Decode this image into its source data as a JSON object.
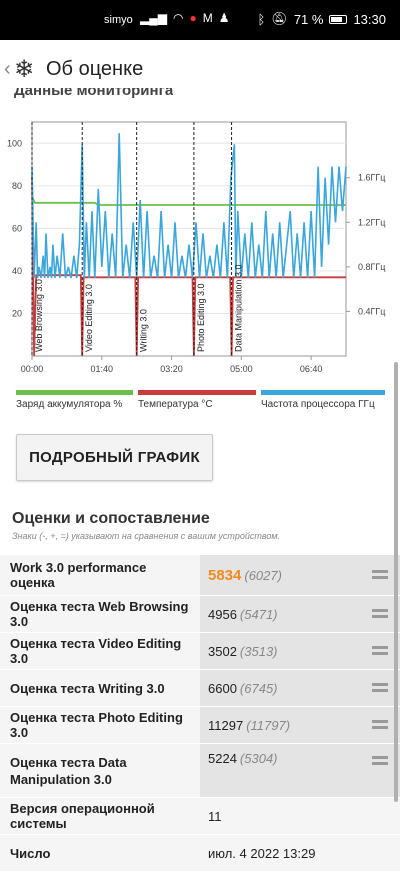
{
  "status_bar": {
    "carrier": "simyo",
    "battery": "71 %",
    "time": "13:30"
  },
  "app_bar": {
    "title": "Об оценке",
    "back_icon": "chevron-left-icon",
    "logo_icon": "snowflake-icon"
  },
  "monitoring": {
    "title": "Данные мониторинга"
  },
  "chart_data": {
    "type": "line",
    "x_ticks": [
      "00:00",
      "01:40",
      "03:20",
      "05:00",
      "06:40"
    ],
    "y_left_ticks": [
      20,
      40,
      60,
      80,
      100
    ],
    "y_left_range": [
      0,
      110
    ],
    "y_right_ticks": [
      "0.4ГГц",
      "0.8ГГц",
      "1.2ГГц",
      "1.6ГГц"
    ],
    "y_right_range": [
      0,
      2.1
    ],
    "x_range_minutes": [
      0,
      450
    ],
    "markers": [
      {
        "label": "Web Browsing 3.0",
        "x": 0
      },
      {
        "label": "Video Editing 3.0",
        "x": 72
      },
      {
        "label": "Writing 3.0",
        "x": 150
      },
      {
        "label": "Photo Editing 3.0",
        "x": 232
      },
      {
        "label": "Data Manipulation 3.0",
        "x": 286
      }
    ],
    "series": [
      {
        "name": "Заряд аккумулятора %",
        "color": "#6cc04a",
        "axis": "left",
        "x": [
          0,
          4,
          90,
          95,
          450
        ],
        "y": [
          75,
          72,
          72,
          71,
          71
        ]
      },
      {
        "name": "Температура °C",
        "color": "#c83c3c",
        "axis": "left",
        "x": [
          0,
          3,
          6,
          70,
          72,
          74,
          148,
          150,
          152,
          230,
          232,
          234,
          284,
          286,
          288,
          450
        ],
        "y": [
          85,
          0,
          38,
          38,
          0,
          37,
          37,
          0,
          37,
          37,
          0,
          37,
          37,
          0,
          37,
          37
        ]
      },
      {
        "name": "Частота процессора ГГц",
        "color": "#3aa6dc",
        "axis": "right",
        "x": [
          0,
          3,
          6,
          8,
          10,
          13,
          16,
          18,
          20,
          23,
          26,
          28,
          30,
          33,
          36,
          40,
          44,
          48,
          52,
          56,
          60,
          64,
          68,
          72,
          75,
          78,
          82,
          86,
          90,
          95,
          100,
          105,
          110,
          115,
          120,
          125,
          130,
          135,
          140,
          145,
          150,
          155,
          160,
          165,
          170,
          175,
          180,
          185,
          190,
          195,
          200,
          205,
          210,
          215,
          220,
          225,
          230,
          235,
          240,
          245,
          250,
          255,
          260,
          265,
          270,
          275,
          280,
          285,
          290,
          292,
          295,
          300,
          305,
          310,
          315,
          320,
          325,
          330,
          335,
          340,
          345,
          350,
          355,
          360,
          365,
          370,
          375,
          380,
          385,
          390,
          395,
          400,
          405,
          410,
          415,
          420,
          425,
          430,
          435,
          440,
          445,
          450
        ],
        "y": [
          1.7,
          0.7,
          1.2,
          0.7,
          0.8,
          0.7,
          0.9,
          0.7,
          1.1,
          0.7,
          0.8,
          0.7,
          1.0,
          0.7,
          0.9,
          0.7,
          1.1,
          0.7,
          0.8,
          0.7,
          0.9,
          0.7,
          1.0,
          1.9,
          0.7,
          1.2,
          0.7,
          1.3,
          0.7,
          1.5,
          0.8,
          1.3,
          0.7,
          1.1,
          0.7,
          2.0,
          0.7,
          1.0,
          0.7,
          1.2,
          0.7,
          1.4,
          0.7,
          1.3,
          0.7,
          0.9,
          0.7,
          1.3,
          0.7,
          1.0,
          0.7,
          1.2,
          0.7,
          0.9,
          0.7,
          1.0,
          0.7,
          1.2,
          0.7,
          1.1,
          0.7,
          0.9,
          0.7,
          1.0,
          0.7,
          1.2,
          0.7,
          1.6,
          1.9,
          0.7,
          1.3,
          0.7,
          1.1,
          0.7,
          1.2,
          0.7,
          1.0,
          0.7,
          1.3,
          0.7,
          1.1,
          0.7,
          1.2,
          0.7,
          1.0,
          1.3,
          0.7,
          1.1,
          0.7,
          1.2,
          0.7,
          1.3,
          0.7,
          1.7,
          0.8,
          1.6,
          1.0,
          1.7,
          1.2,
          1.7,
          1.3,
          1.7
        ]
      }
    ]
  },
  "legend": [
    {
      "label": "Заряд аккумулятора %",
      "color": "#6cc04a"
    },
    {
      "label": "Температура °C",
      "color": "#c83c3c"
    },
    {
      "label": "Частота процессора ГГц",
      "color": "#3aa6dc"
    }
  ],
  "detail_button": {
    "label": "ПОДРОБНЫЙ ГРАФИК"
  },
  "scores": {
    "heading": "Оценки и сопоставление",
    "hint": "Знаки (-, +, =) указывают на сравнения с вашим устройством.",
    "rows": [
      {
        "label": "Work 3.0 performance оценка",
        "value": "5834",
        "ref": "(6027)"
      },
      {
        "label": "Оценка теста Web Browsing 3.0",
        "value": "4956",
        "ref": "(5471)"
      },
      {
        "label": "Оценка теста Video Editing 3.0",
        "value": "3502",
        "ref": "(3513)"
      },
      {
        "label": "Оценка теста Writing 3.0",
        "value": "6600",
        "ref": "(6745)"
      },
      {
        "label": "Оценка теста Photo Editing 3.0",
        "value": "11297",
        "ref": "(11797)"
      },
      {
        "label": "Оценка теста Data Manipulation 3.0",
        "value": "5224",
        "ref": "(5304)"
      }
    ],
    "info_rows": [
      {
        "label": "Версия операционной системы",
        "value": "11"
      },
      {
        "label": "Число",
        "value": "июл. 4 2022 13:29"
      }
    ]
  }
}
